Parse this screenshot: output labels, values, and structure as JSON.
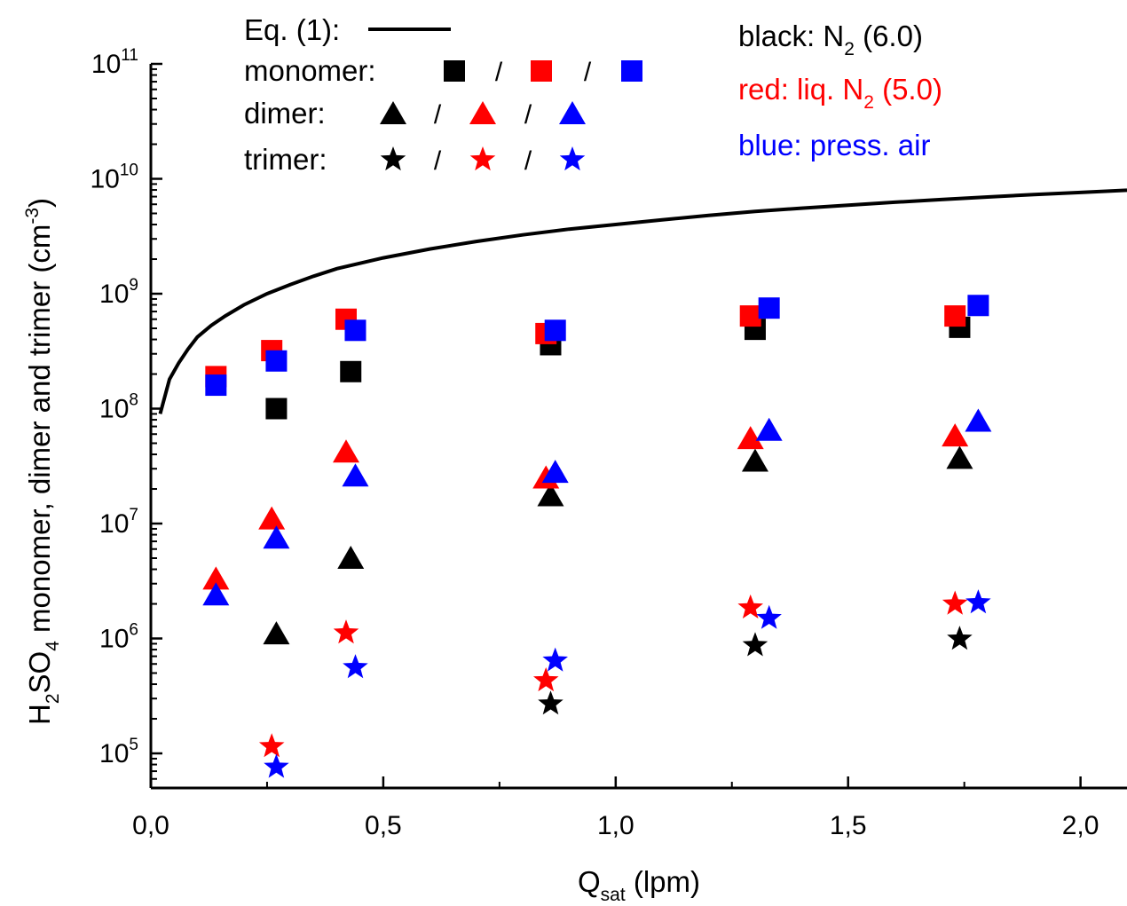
{
  "chart_data": {
    "type": "scatter",
    "x_axis": {
      "label_main": "Q",
      "label_sub": "sat",
      "label_unit": " (lpm)",
      "range": [
        0.0,
        2.1
      ],
      "major_ticks": [
        0.0,
        0.5,
        1.0,
        1.5,
        2.0
      ],
      "tick_labels": [
        "0,0",
        "0,5",
        "1,0",
        "1,5",
        "2,0"
      ],
      "minor_step": 0.25
    },
    "y_axis": {
      "label_parts": [
        "H",
        "2",
        "SO",
        "4",
        " monomer, dimer and trimer (cm",
        "-3",
        ")"
      ],
      "scale": "log",
      "range": [
        50000,
        100000000000
      ],
      "tick_base": "10",
      "tick_exponents": [
        "5",
        "6",
        "7",
        "8",
        "9",
        "10",
        "11"
      ]
    },
    "legend": {
      "eq_label": "Eq. (1):",
      "rows": [
        {
          "label": "monomer:",
          "marker": "square"
        },
        {
          "label": "dimer:",
          "marker": "triangle"
        },
        {
          "label": "trimer:",
          "marker": "star"
        }
      ],
      "separator": "/",
      "color_notes": [
        {
          "text_before": "black: N",
          "sub": "2",
          "text_after": " (6.0)",
          "color": "#000000"
        },
        {
          "text_before": "red: liq. N",
          "sub": "2",
          "text_after": " (5.0)",
          "color": "#ff0000"
        },
        {
          "text_before": "blue: press. air",
          "sub": "",
          "text_after": "",
          "color": "#0000ff"
        }
      ]
    },
    "colors": {
      "black": "#000000",
      "red": "#ff0000",
      "blue": "#0000ff"
    },
    "curve": {
      "name": "Eq. (1)",
      "x": [
        0.02,
        0.04,
        0.06,
        0.08,
        0.1,
        0.13,
        0.16,
        0.2,
        0.25,
        0.3,
        0.35,
        0.4,
        0.5,
        0.6,
        0.7,
        0.8,
        0.9,
        1.0,
        1.1,
        1.2,
        1.3,
        1.4,
        1.5,
        1.6,
        1.7,
        1.8,
        1.9,
        2.0,
        2.1
      ],
      "y": [
        90000000,
        180000000,
        250000000,
        330000000,
        420000000,
        530000000,
        640000000,
        800000000,
        1000000000,
        1200000000,
        1420000000,
        1650000000,
        2050000000,
        2450000000,
        2850000000,
        3250000000,
        3650000000,
        4000000000,
        4400000000,
        4800000000,
        5200000000,
        5550000000,
        5900000000,
        6250000000,
        6600000000,
        6950000000,
        7300000000,
        7600000000,
        7950000000
      ]
    },
    "series": [
      {
        "species": "monomer",
        "color": "black",
        "marker": "square",
        "points": [
          [
            0.27,
            100000000
          ],
          [
            0.43,
            210000000
          ],
          [
            0.86,
            360000000
          ],
          [
            1.3,
            490000000
          ],
          [
            1.74,
            510000000
          ]
        ]
      },
      {
        "species": "monomer",
        "color": "red",
        "marker": "square",
        "points": [
          [
            0.14,
            190000000
          ],
          [
            0.26,
            320000000
          ],
          [
            0.42,
            600000000
          ],
          [
            0.85,
            450000000
          ],
          [
            1.29,
            640000000
          ],
          [
            1.73,
            640000000
          ]
        ]
      },
      {
        "species": "monomer",
        "color": "blue",
        "marker": "square",
        "points": [
          [
            0.14,
            160000000
          ],
          [
            0.27,
            260000000
          ],
          [
            0.44,
            480000000
          ],
          [
            0.87,
            480000000
          ],
          [
            1.33,
            750000000
          ],
          [
            1.78,
            790000000
          ]
        ]
      },
      {
        "species": "dimer",
        "color": "black",
        "marker": "triangle",
        "points": [
          [
            0.27,
            1100000
          ],
          [
            0.43,
            5000000
          ],
          [
            0.86,
            17500000
          ],
          [
            1.3,
            35000000
          ],
          [
            1.74,
            37000000
          ]
        ]
      },
      {
        "species": "dimer",
        "color": "red",
        "marker": "triangle",
        "points": [
          [
            0.14,
            3300000
          ],
          [
            0.26,
            11000000
          ],
          [
            0.42,
            42000000
          ],
          [
            0.85,
            25000000
          ],
          [
            1.29,
            55000000
          ],
          [
            1.73,
            58000000
          ]
        ]
      },
      {
        "species": "dimer",
        "color": "blue",
        "marker": "triangle",
        "points": [
          [
            0.14,
            2400000
          ],
          [
            0.27,
            7500000
          ],
          [
            0.44,
            26000000
          ],
          [
            0.87,
            28000000
          ],
          [
            1.33,
            65000000
          ],
          [
            1.78,
            78000000
          ]
        ]
      },
      {
        "species": "trimer",
        "color": "black",
        "marker": "star",
        "points": [
          [
            0.86,
            270000
          ],
          [
            1.3,
            870000
          ],
          [
            1.74,
            990000
          ]
        ]
      },
      {
        "species": "trimer",
        "color": "red",
        "marker": "star",
        "points": [
          [
            0.26,
            115000
          ],
          [
            0.42,
            1120000
          ],
          [
            0.85,
            430000
          ],
          [
            1.29,
            1850000
          ],
          [
            1.73,
            2000000
          ]
        ]
      },
      {
        "species": "trimer",
        "color": "blue",
        "marker": "star",
        "points": [
          [
            0.27,
            76000
          ],
          [
            0.44,
            560000
          ],
          [
            0.87,
            640000
          ],
          [
            1.33,
            1500000
          ],
          [
            1.78,
            2050000
          ]
        ]
      }
    ]
  }
}
